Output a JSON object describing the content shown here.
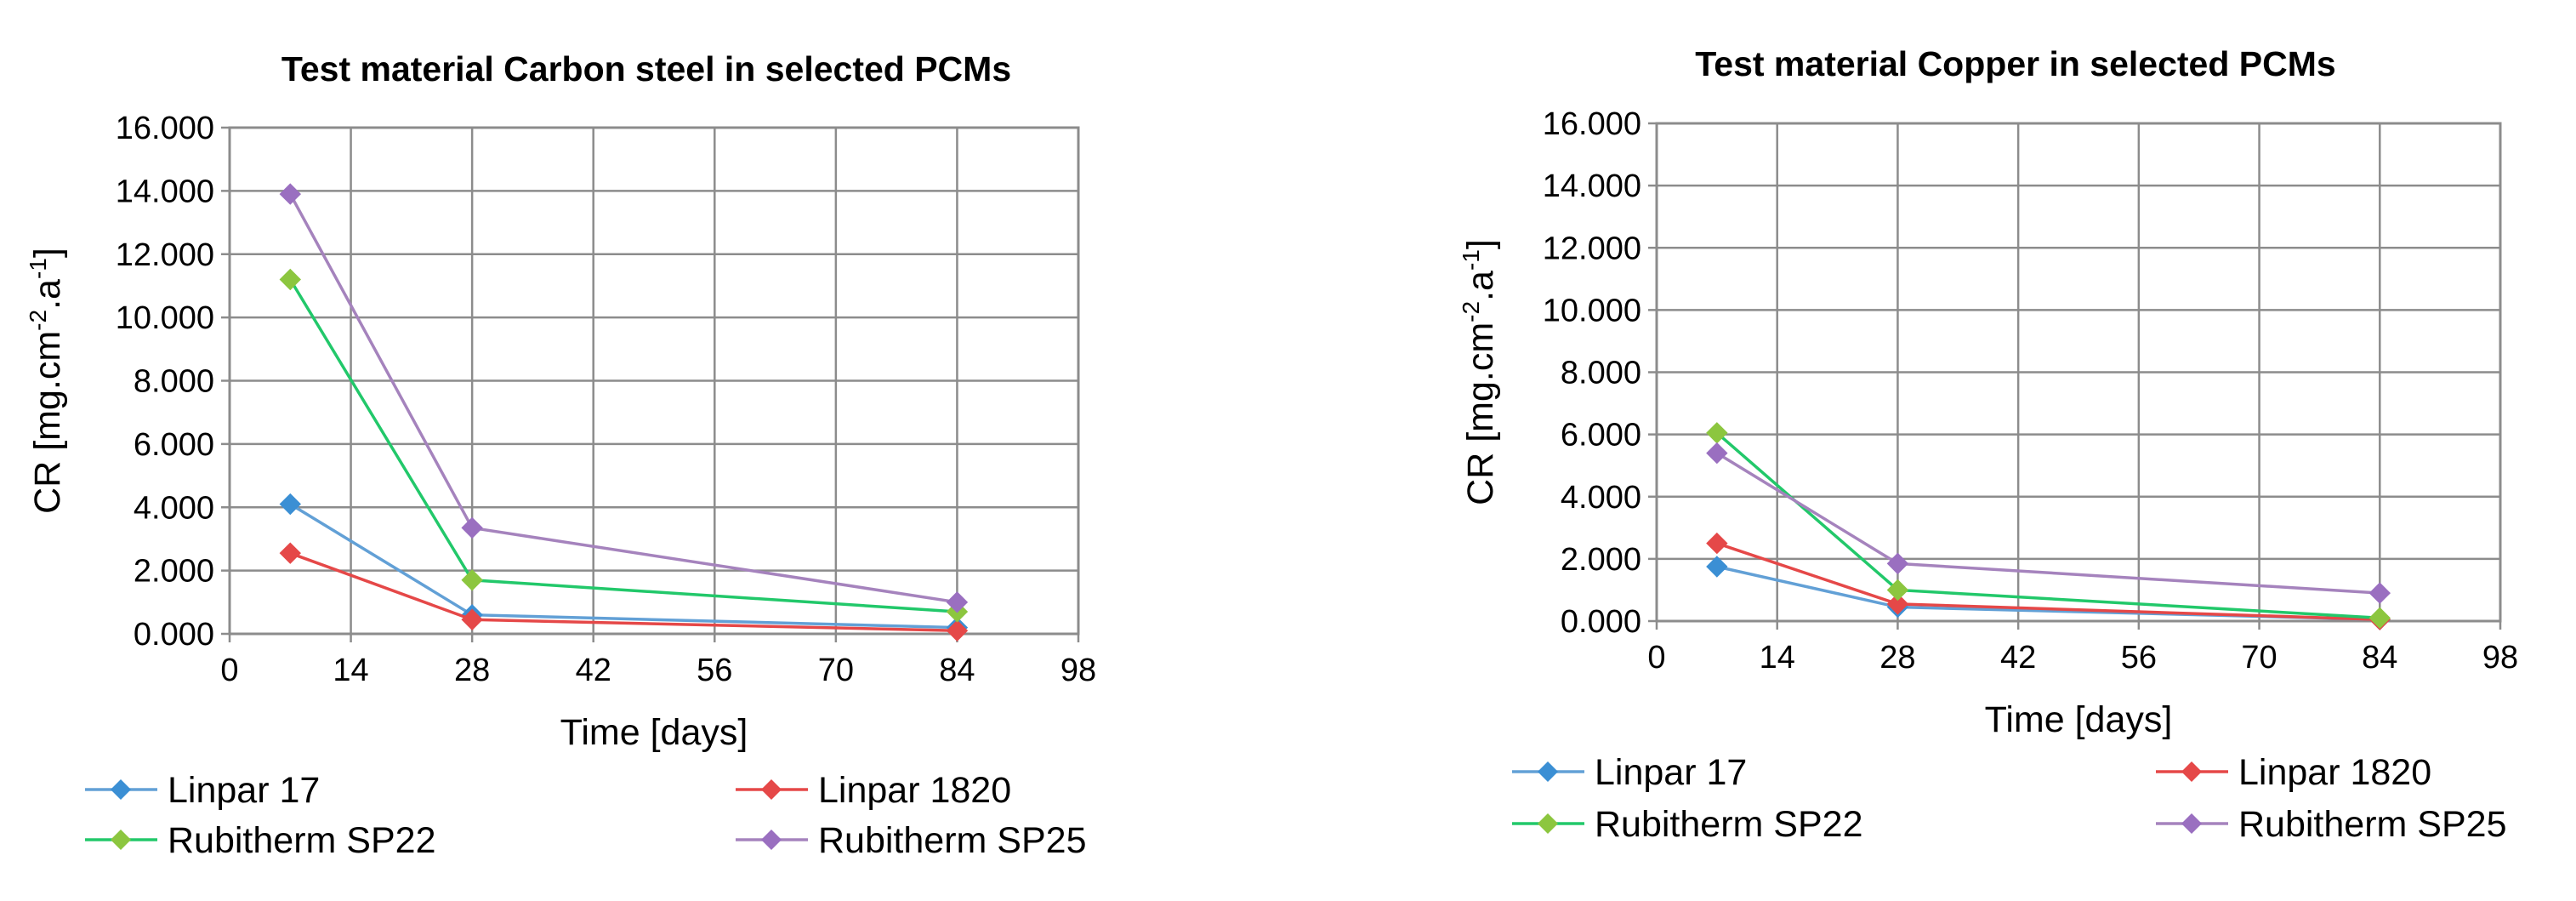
{
  "chart_data": [
    {
      "type": "line",
      "title": "Test material Carbon steel in selected PCMs",
      "xlabel": "Time [days]",
      "ylabel": "CR [mg.cm-2.a-1]",
      "xlim": [
        0,
        98
      ],
      "ylim": [
        0,
        16
      ],
      "xticks": [
        "0",
        "14",
        "28",
        "42",
        "56",
        "70",
        "84",
        "98"
      ],
      "yticks": [
        "0.000",
        "2.000",
        "4.000",
        "6.000",
        "8.000",
        "10.000",
        "12.000",
        "14.000",
        "16.000"
      ],
      "grid": true,
      "legend_position": "bottom",
      "x": [
        7,
        28,
        84
      ],
      "series": [
        {
          "name": "Linpar 17",
          "values": [
            4.1,
            0.6,
            0.2
          ],
          "line_color": "#62a0d6",
          "marker_color": "#3b8fd4"
        },
        {
          "name": "Linpar 1820",
          "values": [
            2.55,
            0.45,
            0.1
          ],
          "line_color": "#e54848",
          "marker_color": "#e54848"
        },
        {
          "name": "Rubitherm SP22",
          "values": [
            11.2,
            1.7,
            0.7
          ],
          "line_color": "#22c86a",
          "marker_color": "#8cc63f"
        },
        {
          "name": "Rubitherm SP25",
          "values": [
            13.9,
            3.35,
            1.0
          ],
          "line_color": "#a583bd",
          "marker_color": "#9a6fc0"
        }
      ]
    },
    {
      "type": "line",
      "title": "Test material Copper in selected PCMs",
      "xlabel": "Time [days]",
      "ylabel": "CR [mg.cm-2.a-1]",
      "xlim": [
        0,
        98
      ],
      "ylim": [
        0,
        16
      ],
      "xticks": [
        "0",
        "14",
        "28",
        "42",
        "56",
        "70",
        "84",
        "98"
      ],
      "yticks": [
        "0.000",
        "2.000",
        "4.000",
        "6.000",
        "8.000",
        "10.000",
        "12.000",
        "14.000",
        "16.000"
      ],
      "grid": true,
      "legend_position": "bottom",
      "x": [
        7,
        28,
        84
      ],
      "series": [
        {
          "name": "Linpar 17",
          "values": [
            1.75,
            0.45,
            0.05
          ],
          "line_color": "#62a0d6",
          "marker_color": "#3b8fd4"
        },
        {
          "name": "Linpar 1820",
          "values": [
            2.5,
            0.55,
            0.05
          ],
          "line_color": "#e54848",
          "marker_color": "#e54848"
        },
        {
          "name": "Rubitherm SP22",
          "values": [
            6.05,
            1.0,
            0.1
          ],
          "line_color": "#22c86a",
          "marker_color": "#8cc63f"
        },
        {
          "name": "Rubitherm SP25",
          "values": [
            5.4,
            1.85,
            0.9
          ],
          "line_color": "#a583bd",
          "marker_color": "#9a6fc0"
        }
      ]
    }
  ]
}
